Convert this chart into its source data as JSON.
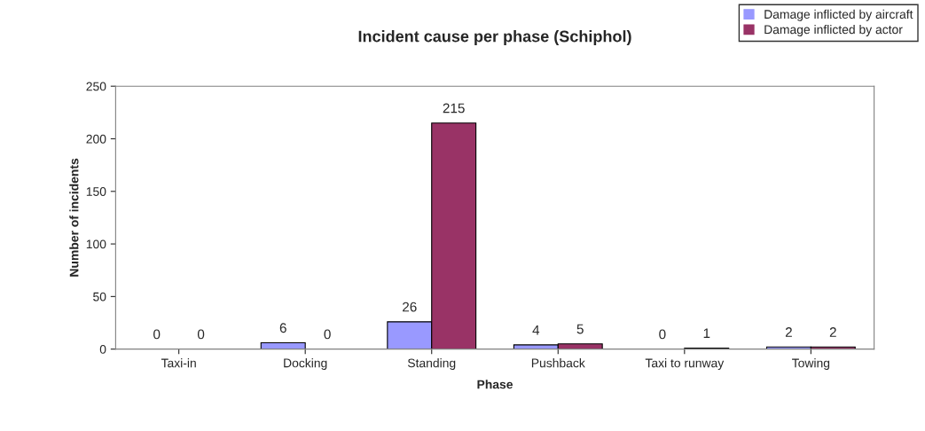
{
  "chart_data": {
    "type": "bar",
    "title": "Incident cause per phase (Schiphol)",
    "xlabel": "Phase",
    "ylabel": "Number of incidents",
    "categories": [
      "Taxi-in",
      "Docking",
      "Standing",
      "Pushback",
      "Taxi to runway",
      "Towing"
    ],
    "series": [
      {
        "name": "Damage inflicted by aircraft",
        "color": "#9999ff",
        "values": [
          0,
          6,
          26,
          4,
          0,
          2
        ]
      },
      {
        "name": "Damage inflicted by actor",
        "color": "#993366",
        "values": [
          0,
          0,
          215,
          5,
          1,
          2
        ]
      }
    ],
    "ylim": [
      0,
      250
    ],
    "yticks": [
      0,
      50,
      100,
      150,
      200,
      250
    ],
    "grid": false,
    "legend": "top right",
    "data_labels": true
  }
}
